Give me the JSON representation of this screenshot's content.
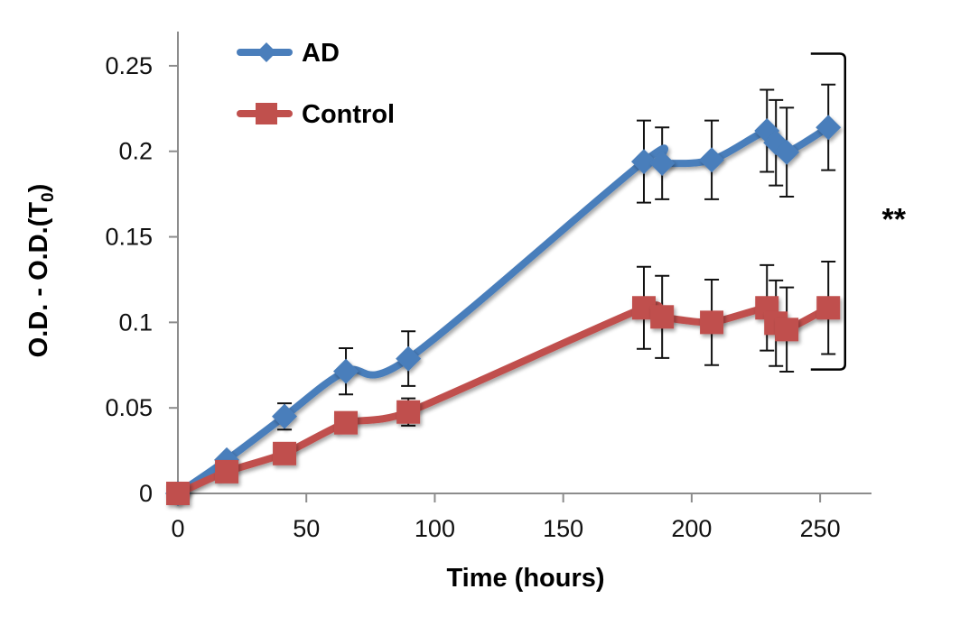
{
  "chart_data": {
    "type": "line",
    "title": "",
    "xlabel": "Time (hours)",
    "ylabel": "O.D. - O.D.(T",
    "ylabel_subscript": "0",
    "ylabel_suffix": ")",
    "xlim": [
      0,
      270
    ],
    "ylim": [
      0,
      0.27
    ],
    "xticks": [
      0,
      50,
      100,
      150,
      200,
      250
    ],
    "xtick_labels": [
      "0",
      "50",
      "100",
      "150",
      "200",
      "250"
    ],
    "yticks": [
      0,
      0.05,
      0.1,
      0.15,
      0.2,
      0.25
    ],
    "ytick_labels": [
      "0",
      "0.05",
      "0.1",
      "0.15",
      "0.2",
      "0.25"
    ],
    "grid": false,
    "legend_position": "top-left",
    "smooth": true,
    "series": [
      {
        "name": "AD",
        "color": "#4a7ebb",
        "marker": "diamond",
        "x": [
          0,
          19,
          41.5,
          65.4,
          89.7,
          181.4,
          188.5,
          207.8,
          229.3,
          232.8,
          237,
          253.2
        ],
        "y": [
          0,
          0.0196,
          0.045,
          0.0714,
          0.0788,
          0.194,
          0.193,
          0.195,
          0.212,
          0.205,
          0.1995,
          0.214
        ],
        "error": [
          0,
          0,
          0.0077,
          0.0135,
          0.016,
          0.024,
          0.021,
          0.023,
          0.024,
          0.025,
          0.026,
          0.025
        ]
      },
      {
        "name": "Control",
        "color": "#c0504d",
        "marker": "square",
        "x": [
          0,
          19,
          41.5,
          65.4,
          89.7,
          181.4,
          188.5,
          207.8,
          229.3,
          232.8,
          237,
          253.2
        ],
        "y": [
          0,
          0.0127,
          0.0233,
          0.0413,
          0.0476,
          0.1085,
          0.1032,
          0.1,
          0.1085,
          0.0995,
          0.0958,
          0.1085
        ],
        "error": [
          0,
          0,
          0,
          0,
          0.008,
          0.024,
          0.024,
          0.025,
          0.025,
          0.025,
          0.0246,
          0.027
        ]
      }
    ],
    "annotations": [
      {
        "type": "bracket",
        "label": "**",
        "y_range": [
          0.073,
          0.256
        ],
        "x": 265
      }
    ]
  }
}
